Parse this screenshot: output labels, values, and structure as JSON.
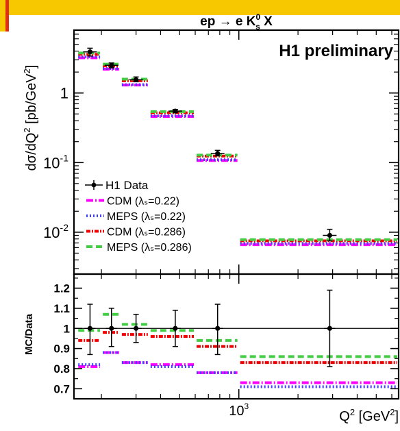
{
  "chart_data": [
    {
      "type": "line",
      "panel": "main",
      "title": "ep → e K⁰ₛ X",
      "annotation": "H1 preliminary",
      "ylabel": "dσ/dQ² [pb/GeV²]",
      "yscale": "log",
      "ylim": [
        0.0025,
        8
      ],
      "xscale": "log",
      "xlim": [
        145,
        6500
      ],
      "yticks": [
        {
          "value": 1,
          "label": "1"
        },
        {
          "value": 0.1,
          "label": "10⁻¹"
        },
        {
          "value": 0.01,
          "label": "10⁻²"
        }
      ],
      "bins": [
        {
          "lo": 150,
          "hi": 200,
          "center": 175
        },
        {
          "lo": 200,
          "hi": 250,
          "center": 225
        },
        {
          "lo": 250,
          "hi": 350,
          "center": 300
        },
        {
          "lo": 350,
          "hi": 600,
          "center": 475
        },
        {
          "lo": 600,
          "hi": 1000,
          "center": 780
        },
        {
          "lo": 1000,
          "hi": 6500,
          "center": 2900
        }
      ],
      "data": {
        "name": "H1 Data",
        "values": [
          3.9,
          2.5,
          1.55,
          0.55,
          0.135,
          0.009
        ],
        "err_lo": [
          3.4,
          2.3,
          1.45,
          0.52,
          0.125,
          0.0075
        ],
        "err_hi": [
          4.4,
          2.7,
          1.7,
          0.58,
          0.15,
          0.011
        ]
      },
      "series": [
        {
          "name": "CDM (λₛ=0.22)",
          "color": "#ff00ff",
          "style": "dash-dot",
          "values": [
            3.2,
            2.2,
            1.3,
            0.46,
            0.107,
            0.0066
          ]
        },
        {
          "name": "MEPS (λₛ=0.22)",
          "color": "#4040ff",
          "style": "dotted",
          "values": [
            3.3,
            2.25,
            1.32,
            0.47,
            0.11,
            0.0069
          ]
        },
        {
          "name": "CDM (λₛ=0.286)",
          "color": "#ee0000",
          "style": "dashed-dotted",
          "values": [
            3.6,
            2.45,
            1.5,
            0.52,
            0.124,
            0.0075
          ]
        },
        {
          "name": "MEPS (λₛ=0.286)",
          "color": "#44cc44",
          "style": "dashed",
          "values": [
            3.75,
            2.6,
            1.58,
            0.54,
            0.128,
            0.0078
          ]
        }
      ]
    },
    {
      "type": "line",
      "panel": "ratio",
      "ylabel": "MC/Data",
      "xlabel": "Q² [GeV²]",
      "ylim": [
        0.65,
        1.27
      ],
      "xscale": "log",
      "xlim": [
        145,
        6500
      ],
      "xticks": [
        {
          "value": 1000,
          "label": "10³"
        }
      ],
      "yticks": [
        {
          "value": 1.2,
          "label": "1.2"
        },
        {
          "value": 1.1,
          "label": "1.1"
        },
        {
          "value": 1.0,
          "label": "1"
        },
        {
          "value": 0.9,
          "label": "0.9"
        },
        {
          "value": 0.8,
          "label": "0.8"
        },
        {
          "value": 0.7,
          "label": "0.7"
        }
      ],
      "data_points": {
        "values": [
          1.0,
          1.0,
          1.0,
          1.0,
          1.0,
          1.0
        ],
        "err_lo": [
          0.87,
          0.91,
          0.93,
          0.91,
          0.87,
          0.81
        ],
        "err_hi": [
          1.12,
          1.1,
          1.07,
          1.09,
          1.12,
          1.19
        ]
      },
      "series": [
        {
          "name": "CDM (λₛ=0.22)",
          "color": "#ff00ff",
          "style": "dash-dot",
          "values": [
            0.81,
            0.88,
            0.83,
            0.82,
            0.78,
            0.73
          ]
        },
        {
          "name": "MEPS (λₛ=0.22)",
          "color": "#4040ff",
          "style": "dotted",
          "values": [
            0.82,
            0.88,
            0.83,
            0.81,
            0.78,
            0.71
          ]
        },
        {
          "name": "CDM (λₛ=0.286)",
          "color": "#ee0000",
          "style": "dashed-dotted",
          "values": [
            0.94,
            0.98,
            0.97,
            0.96,
            0.91,
            0.83
          ]
        },
        {
          "name": "MEPS (λₛ=0.286)",
          "color": "#44cc44",
          "style": "dashed",
          "values": [
            0.99,
            1.07,
            1.02,
            0.99,
            0.94,
            0.86
          ]
        }
      ]
    }
  ],
  "legend_placement": "bottom-left of upper panel",
  "colors": {
    "slide_bar": "#f7c800",
    "slide_mark": "#e03010"
  }
}
